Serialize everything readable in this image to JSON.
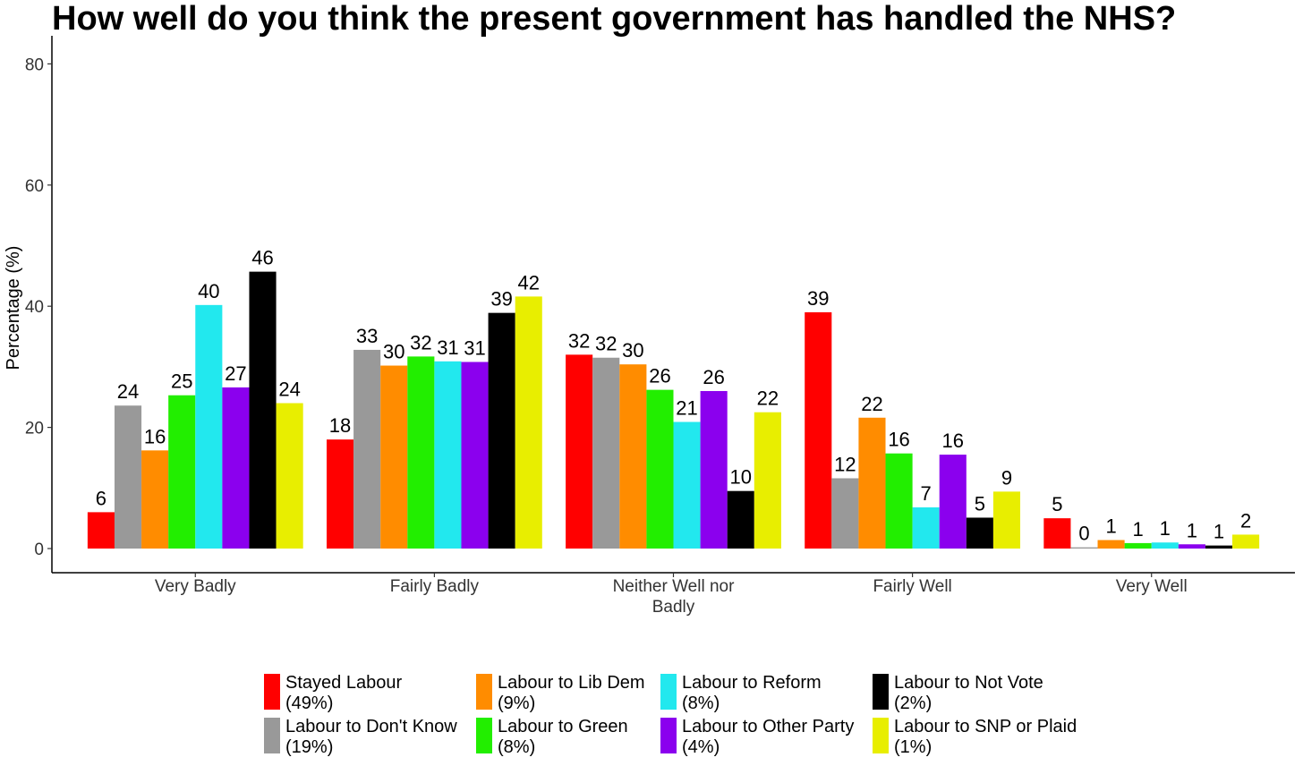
{
  "chart_data": {
    "type": "bar",
    "title": "How well do you think the present government has handled the NHS?",
    "xlabel": "",
    "ylabel": "Percentage (%)",
    "ylim": [
      0,
      84
    ],
    "yticks": [
      0,
      20,
      40,
      60,
      80
    ],
    "grid": false,
    "legend_position": "bottom",
    "categories": [
      [
        "Very Badly"
      ],
      [
        "Fairly Badly"
      ],
      [
        "Neither Well nor",
        "Badly"
      ],
      [
        "Fairly Well"
      ],
      [
        "Very Well"
      ]
    ],
    "series": [
      {
        "name": [
          "Stayed Labour",
          "(49%)"
        ],
        "color": "#ff0000",
        "values": [
          6,
          18,
          32,
          39,
          5
        ],
        "labels": [
          "6",
          "18",
          "32",
          "39",
          "5"
        ]
      },
      {
        "name": [
          "Labour to Don't Know",
          "(19%)"
        ],
        "color": "#999999",
        "values": [
          23.6,
          32.8,
          31.5,
          11.6,
          0.2
        ],
        "labels": [
          "24",
          "33",
          "32",
          "12",
          "0"
        ]
      },
      {
        "name": [
          "Labour to Lib Dem",
          "(9%)"
        ],
        "color": "#ff8c00",
        "values": [
          16.2,
          30.2,
          30.4,
          21.6,
          1.4
        ],
        "labels": [
          "16",
          "30",
          "30",
          "22",
          "1"
        ]
      },
      {
        "name": [
          "Labour to Green",
          "(8%)"
        ],
        "color": "#22ee00",
        "values": [
          25.3,
          31.7,
          26.2,
          15.7,
          0.9
        ],
        "labels": [
          "25",
          "32",
          "26",
          "16",
          "1"
        ]
      },
      {
        "name": [
          "Labour to Reform",
          "(8%)"
        ],
        "color": "#22e8ee",
        "values": [
          40.2,
          30.9,
          20.9,
          6.8,
          1.0
        ],
        "labels": [
          "40",
          "31",
          "21",
          "7",
          "1"
        ]
      },
      {
        "name": [
          "Labour to Other Party",
          "(4%)"
        ],
        "color": "#8b00ee",
        "values": [
          26.6,
          30.8,
          26.0,
          15.5,
          0.7
        ],
        "labels": [
          "27",
          "31",
          "26",
          "16",
          "1"
        ]
      },
      {
        "name": [
          "Labour to Not Vote",
          "(2%)"
        ],
        "color": "#000000",
        "values": [
          45.7,
          38.9,
          9.5,
          5.1,
          0.5
        ],
        "labels": [
          "46",
          "39",
          "10",
          "5",
          "1"
        ]
      },
      {
        "name": [
          "Labour to SNP or Plaid",
          "(1%)"
        ],
        "color": "#e8ee00",
        "values": [
          24.0,
          41.6,
          22.5,
          9.4,
          2.3
        ],
        "labels": [
          "24",
          "42",
          "22",
          "9",
          "2"
        ]
      }
    ],
    "legend_order": [
      0,
      2,
      4,
      6,
      1,
      3,
      5,
      7
    ]
  }
}
